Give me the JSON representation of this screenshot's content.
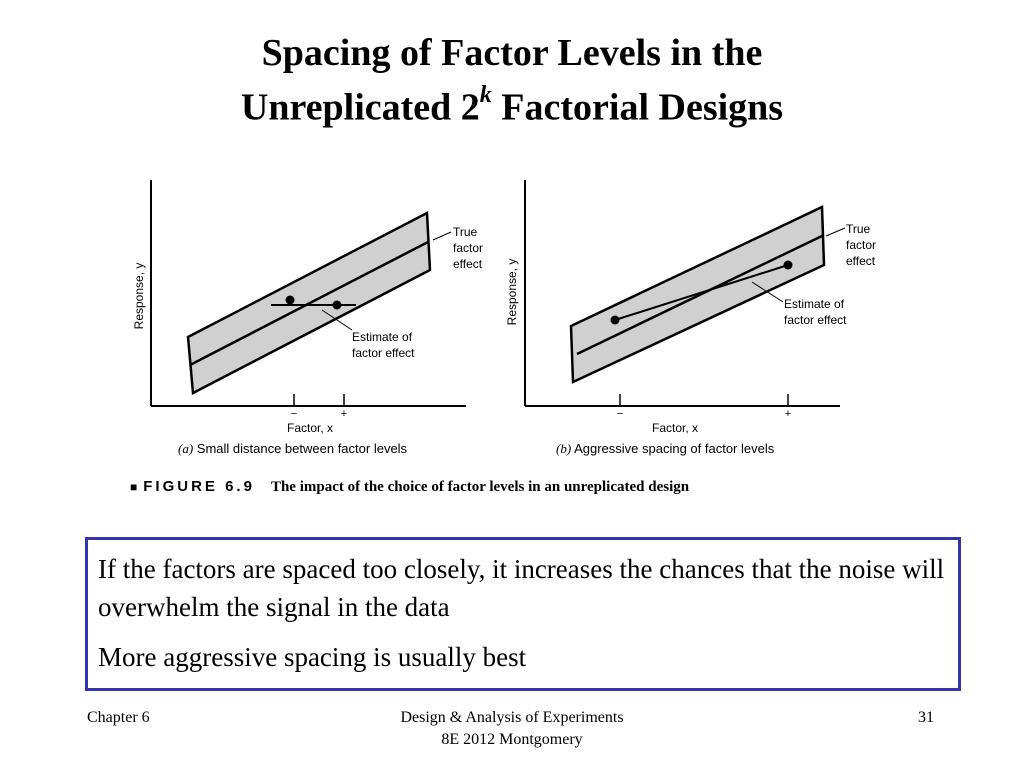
{
  "slide": {
    "title_line1": "Spacing of Factor Levels in the",
    "title_line2_pre": "Unreplicated 2",
    "title_sup": "k",
    "title_line2_post": " Factorial Designs"
  },
  "figure": {
    "panel_a": {
      "y_axis_label": "Response, y",
      "x_axis_label": "Factor, x",
      "tick_minus": "−",
      "tick_plus": "+",
      "annotation_true_1": "True",
      "annotation_true_2": "factor",
      "annotation_true_3": "effect",
      "annotation_est_1": "Estimate of",
      "annotation_est_2": "factor effect",
      "caption_tag": "(a)",
      "caption_text": " Small distance between factor levels"
    },
    "panel_b": {
      "y_axis_label": "Response, y",
      "x_axis_label": "Factor, x",
      "tick_minus": "−",
      "tick_plus": "+",
      "annotation_true_1": "True",
      "annotation_true_2": "factor",
      "annotation_true_3": "effect",
      "annotation_est_1": "Estimate of",
      "annotation_est_2": "factor effect",
      "caption_tag": "(b)",
      "caption_text": " Aggressive spacing of factor levels"
    },
    "figure_marker": "■",
    "figure_label": "FIGURE 6.9",
    "figure_caption": "The impact of the choice of factor levels in an unreplicated design",
    "band_color": "#d0d0d0"
  },
  "notes": {
    "line1": "If the factors are spaced too closely, it increases the chances that the noise will overwhelm the signal in the data",
    "line2": "More aggressive spacing is usually best"
  },
  "footer": {
    "left": "Chapter 6",
    "center_line1": "Design & Analysis of Experiments",
    "center_line2": "8E 2012 Montgomery",
    "page_number": "31"
  }
}
